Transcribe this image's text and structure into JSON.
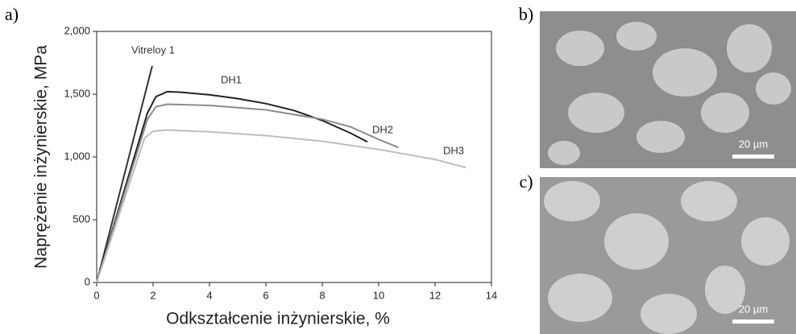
{
  "chart_data": {
    "type": "line",
    "panel_label": "a)",
    "x_label": "Odkształcenie inżynierskie, %",
    "y_label": "Naprężenie inżynierskie, MPa",
    "xlim": [
      0,
      14
    ],
    "xticks": [
      0,
      2,
      4,
      6,
      8,
      10,
      12,
      14
    ],
    "ylim": [
      0,
      2000
    ],
    "yticks": [
      0,
      500,
      {
        "value": 1000,
        "label": "1,000"
      },
      {
        "value": 1500,
        "label": "1,500"
      },
      {
        "value": 2000,
        "label": "2,000"
      }
    ],
    "series": [
      {
        "name": "Vitreloy 1",
        "color": "#333333",
        "x": [
          0,
          1.97
        ],
        "values": [
          0,
          1725
        ]
      },
      {
        "name": "DH1",
        "color": "#222222",
        "x": [
          0,
          1.8,
          2.1,
          2.5,
          3,
          4,
          5,
          6,
          7,
          8,
          9,
          9.6
        ],
        "values": [
          0,
          1350,
          1480,
          1520,
          1515,
          1495,
          1465,
          1425,
          1370,
          1290,
          1190,
          1120
        ]
      },
      {
        "name": "DH2",
        "color": "#8c8c8c",
        "x": [
          0,
          1.8,
          2.1,
          2.5,
          4,
          6,
          8,
          9,
          10,
          10.7
        ],
        "values": [
          0,
          1300,
          1400,
          1420,
          1410,
          1375,
          1300,
          1240,
          1140,
          1075
        ]
      },
      {
        "name": "DH3",
        "color": "#bdbdbd",
        "x": [
          0,
          1.7,
          2,
          2.5,
          4,
          6,
          8,
          10,
          12,
          13.1
        ],
        "values": [
          0,
          1150,
          1205,
          1215,
          1200,
          1170,
          1125,
          1060,
          980,
          915
        ]
      }
    ]
  },
  "images": [
    {
      "label": "b)",
      "scale_bar": "20 µm"
    },
    {
      "label": "c)",
      "scale_bar": "20 µm"
    }
  ]
}
